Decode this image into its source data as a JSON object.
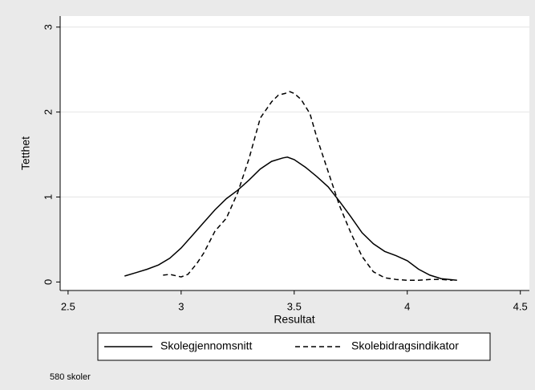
{
  "chart_data": {
    "type": "line",
    "x_label": "Resultat",
    "y_label": "Tetthet",
    "note": "580 skoler",
    "xlim": [
      2.465,
      4.54
    ],
    "ylim": [
      -0.1,
      3.13
    ],
    "xticks": [
      2.5,
      3,
      3.5,
      4,
      4.5
    ],
    "yticks": [
      0,
      1,
      2,
      3
    ],
    "grid": true,
    "series": [
      {
        "name": "Skolegjennomsnitt",
        "color": "#000000",
        "dash": "solid",
        "x": [
          2.75,
          2.8,
          2.85,
          2.9,
          2.95,
          3.0,
          3.05,
          3.1,
          3.15,
          3.2,
          3.25,
          3.3,
          3.35,
          3.4,
          3.45,
          3.47,
          3.5,
          3.55,
          3.6,
          3.65,
          3.7,
          3.75,
          3.8,
          3.85,
          3.9,
          3.95,
          4.0,
          4.05,
          4.1,
          4.15,
          4.22
        ],
        "values": [
          0.07,
          0.11,
          0.15,
          0.2,
          0.28,
          0.4,
          0.55,
          0.7,
          0.85,
          0.98,
          1.08,
          1.2,
          1.33,
          1.42,
          1.46,
          1.47,
          1.44,
          1.35,
          1.24,
          1.12,
          0.95,
          0.77,
          0.58,
          0.45,
          0.36,
          0.31,
          0.25,
          0.15,
          0.08,
          0.04,
          0.02
        ]
      },
      {
        "name": "Skolebidragsindikator",
        "color": "#000000",
        "dash": "dashed",
        "x": [
          2.92,
          2.95,
          3.0,
          3.03,
          3.07,
          3.1,
          3.15,
          3.2,
          3.25,
          3.3,
          3.35,
          3.4,
          3.43,
          3.46,
          3.48,
          3.5,
          3.53,
          3.57,
          3.6,
          3.65,
          3.7,
          3.75,
          3.8,
          3.85,
          3.9,
          3.95,
          4.0,
          4.05,
          4.1,
          4.15,
          4.2
        ],
        "values": [
          0.08,
          0.09,
          0.06,
          0.09,
          0.22,
          0.34,
          0.6,
          0.75,
          1.05,
          1.45,
          1.93,
          2.12,
          2.2,
          2.22,
          2.24,
          2.22,
          2.15,
          1.98,
          1.7,
          1.3,
          0.9,
          0.58,
          0.3,
          0.12,
          0.05,
          0.03,
          0.02,
          0.02,
          0.03,
          0.03,
          0.02
        ]
      }
    ]
  }
}
